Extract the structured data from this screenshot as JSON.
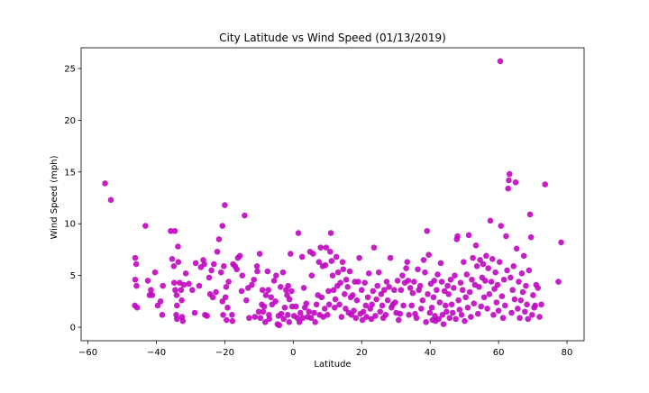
{
  "chart_data": {
    "type": "scatter",
    "title": "City Latitude vs Wind Speed (01/13/2019)",
    "xlabel": "Latitude",
    "ylabel": "Wind Speed (mph)",
    "xlim": [
      -62,
      85
    ],
    "ylim": [
      -1.3,
      27
    ],
    "xticks": [
      -60,
      -40,
      -20,
      0,
      20,
      40,
      60,
      80
    ],
    "yticks": [
      0,
      5,
      10,
      15,
      20,
      25
    ],
    "grid": false,
    "legend": "none",
    "marker_color": "#bf00bf",
    "points": [
      [
        -55.0,
        13.9
      ],
      [
        -53.3,
        12.3
      ],
      [
        -46.2,
        6.7
      ],
      [
        -45.9,
        6.1
      ],
      [
        -46.2,
        4.6
      ],
      [
        -45.8,
        4.0
      ],
      [
        -46.3,
        2.1
      ],
      [
        -45.6,
        1.9
      ],
      [
        -43.2,
        9.8
      ],
      [
        -42.5,
        4.5
      ],
      [
        -42.0,
        3.1
      ],
      [
        -41.6,
        3.6
      ],
      [
        -41.2,
        3.1
      ],
      [
        -40.4,
        5.3
      ],
      [
        -39.6,
        2.1
      ],
      [
        -38.8,
        2.5
      ],
      [
        -38.3,
        1.2
      ],
      [
        -38.1,
        4.0
      ],
      [
        -35.8,
        9.3
      ],
      [
        -34.6,
        9.3
      ],
      [
        -35.4,
        6.6
      ],
      [
        -34.9,
        5.9
      ],
      [
        -34.8,
        4.3
      ],
      [
        -34.5,
        3.6
      ],
      [
        -34.1,
        3.1
      ],
      [
        -34.0,
        2.1
      ],
      [
        -34.2,
        1.2
      ],
      [
        -34.0,
        0.8
      ],
      [
        -33.7,
        7.8
      ],
      [
        -33.6,
        6.3
      ],
      [
        -33.2,
        4.3
      ],
      [
        -32.8,
        3.6
      ],
      [
        -32.6,
        2.6
      ],
      [
        -32.5,
        1.0
      ],
      [
        -32.3,
        0.6
      ],
      [
        -32.0,
        4.1
      ],
      [
        -31.4,
        5.2
      ],
      [
        -30.5,
        4.2
      ],
      [
        -29.5,
        3.6
      ],
      [
        -28.8,
        1.4
      ],
      [
        -28.5,
        6.2
      ],
      [
        -27.5,
        4.0
      ],
      [
        -27.0,
        5.8
      ],
      [
        -26.3,
        6.5
      ],
      [
        -26.0,
        6.1
      ],
      [
        -25.8,
        1.2
      ],
      [
        -25.2,
        1.1
      ],
      [
        -24.6,
        4.8
      ],
      [
        -24.3,
        3.2
      ],
      [
        -23.9,
        5.5
      ],
      [
        -23.5,
        2.9
      ],
      [
        -23.2,
        6.1
      ],
      [
        -22.6,
        3.4
      ],
      [
        -22.2,
        7.3
      ],
      [
        -21.7,
        8.5
      ],
      [
        -21.1,
        5.3
      ],
      [
        -20.7,
        2.5
      ],
      [
        -20.5,
        1.2
      ],
      [
        -20.3,
        5.9
      ],
      [
        -20.7,
        9.8
      ],
      [
        -20.0,
        11.8
      ],
      [
        -19.8,
        2.9
      ],
      [
        -19.6,
        3.9
      ],
      [
        -19.5,
        0.7
      ],
      [
        -19.2,
        1.9
      ],
      [
        -18.9,
        4.4
      ],
      [
        -17.9,
        1.2
      ],
      [
        -17.8,
        0.6
      ],
      [
        -17.6,
        6.1
      ],
      [
        -17.0,
        5.9
      ],
      [
        -16.5,
        5.6
      ],
      [
        -16.2,
        6.7
      ],
      [
        -15.6,
        6.9
      ],
      [
        -15.1,
        3.5
      ],
      [
        -14.9,
        5.0
      ],
      [
        -14.2,
        10.8
      ],
      [
        -13.7,
        2.6
      ],
      [
        -13.2,
        3.8
      ],
      [
        -12.9,
        0.9
      ],
      [
        -12.1,
        4.1
      ],
      [
        -11.5,
        4.6
      ],
      [
        -11.2,
        1.0
      ],
      [
        -10.6,
        5.9
      ],
      [
        -10.5,
        5.4
      ],
      [
        -10.1,
        1.5
      ],
      [
        -9.8,
        7.1
      ],
      [
        -9.6,
        0.9
      ],
      [
        -9.2,
        2.2
      ],
      [
        -9.0,
        3.6
      ],
      [
        -8.8,
        1.5
      ],
      [
        -8.5,
        2.0
      ],
      [
        -8.2,
        0.5
      ],
      [
        -8.0,
        3.1
      ],
      [
        -7.5,
        5.4
      ],
      [
        -7.3,
        3.6
      ],
      [
        -7.1,
        1.2
      ],
      [
        -7.0,
        0.8
      ],
      [
        -6.5,
        2.9
      ],
      [
        -6.2,
        2.2
      ],
      [
        -5.6,
        4.5
      ],
      [
        -5.2,
        2.5
      ],
      [
        -5.0,
        5.0
      ],
      [
        -4.6,
        0.3
      ],
      [
        -4.3,
        1.1
      ],
      [
        -4.1,
        0.2
      ],
      [
        -3.7,
        3.9
      ],
      [
        -3.5,
        1.3
      ],
      [
        -3.0,
        5.3
      ],
      [
        -2.8,
        0.8
      ],
      [
        -2.5,
        1.9
      ],
      [
        -2.1,
        3.6
      ],
      [
        -1.8,
        3.1
      ],
      [
        -1.6,
        1.2
      ],
      [
        -1.5,
        4.0
      ],
      [
        -1.2,
        0.5
      ],
      [
        -1.1,
        2.7
      ],
      [
        -0.8,
        7.1
      ],
      [
        -0.5,
        3.5
      ],
      [
        -0.3,
        2.0
      ],
      [
        0.2,
        1.1
      ],
      [
        0.8,
        2.0
      ],
      [
        1.2,
        0.9
      ],
      [
        1.5,
        9.1
      ],
      [
        1.8,
        0.5
      ],
      [
        2.1,
        1.4
      ],
      [
        2.6,
        6.8
      ],
      [
        2.8,
        0.9
      ],
      [
        3.1,
        3.8
      ],
      [
        3.4,
        1.9
      ],
      [
        3.8,
        2.3
      ],
      [
        4.2,
        1.0
      ],
      [
        4.6,
        1.5
      ],
      [
        4.9,
        7.3
      ],
      [
        5.2,
        0.9
      ],
      [
        5.4,
        5.0
      ],
      [
        5.8,
        7.1
      ],
      [
        6.1,
        1.4
      ],
      [
        6.4,
        0.5
      ],
      [
        6.8,
        2.2
      ],
      [
        7.2,
        3.1
      ],
      [
        7.5,
        6.3
      ],
      [
        7.7,
        1.2
      ],
      [
        8.0,
        7.7
      ],
      [
        8.3,
        2.9
      ],
      [
        8.6,
        5.9
      ],
      [
        8.8,
        1.0
      ],
      [
        9.2,
        1.8
      ],
      [
        9.4,
        6.0
      ],
      [
        9.6,
        7.7
      ],
      [
        10.0,
        1.2
      ],
      [
        10.3,
        3.5
      ],
      [
        10.5,
        2.2
      ],
      [
        10.8,
        7.3
      ],
      [
        11.0,
        9.1
      ],
      [
        11.2,
        6.4
      ],
      [
        11.5,
        5.0
      ],
      [
        11.8,
        3.6
      ],
      [
        12.1,
        1.9
      ],
      [
        12.3,
        2.7
      ],
      [
        12.6,
        6.8
      ],
      [
        12.9,
        4.0
      ],
      [
        13.1,
        5.3
      ],
      [
        13.5,
        2.2
      ],
      [
        13.8,
        4.3
      ],
      [
        14.1,
        1.0
      ],
      [
        14.4,
        6.3
      ],
      [
        14.6,
        5.6
      ],
      [
        15.0,
        3.2
      ],
      [
        15.3,
        1.8
      ],
      [
        15.5,
        4.6
      ],
      [
        15.9,
        3.9
      ],
      [
        16.2,
        1.4
      ],
      [
        16.5,
        5.4
      ],
      [
        16.8,
        2.9
      ],
      [
        17.0,
        1.2
      ],
      [
        17.4,
        3.1
      ],
      [
        17.7,
        1.6
      ],
      [
        18.0,
        4.4
      ],
      [
        18.3,
        0.9
      ],
      [
        18.6,
        2.6
      ],
      [
        19.0,
        4.4
      ],
      [
        19.3,
        6.7
      ],
      [
        19.6,
        1.3
      ],
      [
        20.0,
        3.6
      ],
      [
        20.2,
        0.7
      ],
      [
        20.5,
        1.5
      ],
      [
        20.9,
        4.3
      ],
      [
        21.2,
        2.1
      ],
      [
        21.4,
        1.0
      ],
      [
        21.8,
        2.9
      ],
      [
        22.1,
        5.2
      ],
      [
        22.5,
        1.8
      ],
      [
        22.8,
        0.8
      ],
      [
        23.0,
        2.2
      ],
      [
        23.3,
        3.5
      ],
      [
        23.6,
        7.7
      ],
      [
        24.0,
        1.1
      ],
      [
        24.3,
        2.7
      ],
      [
        24.6,
        4.0
      ],
      [
        25.0,
        5.3
      ],
      [
        25.4,
        1.5
      ],
      [
        25.7,
        3.2
      ],
      [
        26.0,
        2.1
      ],
      [
        26.3,
        0.9
      ],
      [
        26.6,
        3.6
      ],
      [
        27.0,
        1.2
      ],
      [
        27.3,
        4.4
      ],
      [
        27.6,
        2.6
      ],
      [
        28.0,
        3.9
      ],
      [
        28.4,
        6.7
      ],
      [
        28.7,
        1.9
      ],
      [
        29.1,
        2.2
      ],
      [
        29.5,
        3.6
      ],
      [
        29.8,
        2.4
      ],
      [
        30.1,
        1.4
      ],
      [
        30.5,
        4.5
      ],
      [
        30.8,
        0.7
      ],
      [
        31.2,
        1.3
      ],
      [
        31.5,
        3.6
      ],
      [
        31.9,
        5.0
      ],
      [
        32.2,
        2.1
      ],
      [
        32.6,
        4.3
      ],
      [
        33.0,
        5.7
      ],
      [
        33.3,
        6.3
      ],
      [
        33.6,
        4.5
      ],
      [
        33.8,
        1.2
      ],
      [
        34.2,
        3.8
      ],
      [
        34.6,
        2.1
      ],
      [
        34.9,
        3.3
      ],
      [
        35.3,
        4.4
      ],
      [
        35.6,
        1.3
      ],
      [
        36.0,
        0.9
      ],
      [
        36.4,
        5.6
      ],
      [
        36.7,
        3.6
      ],
      [
        37.1,
        4.0
      ],
      [
        37.4,
        1.8
      ],
      [
        37.8,
        2.6
      ],
      [
        38.1,
        6.5
      ],
      [
        38.5,
        5.3
      ],
      [
        38.8,
        0.5
      ],
      [
        39.1,
        9.3
      ],
      [
        39.3,
        3.2
      ],
      [
        39.6,
        7.0
      ],
      [
        39.9,
        1.4
      ],
      [
        40.2,
        4.2
      ],
      [
        40.5,
        1.9
      ],
      [
        40.7,
        0.7
      ],
      [
        41.0,
        2.9
      ],
      [
        41.2,
        4.5
      ],
      [
        41.4,
        1.1
      ],
      [
        41.6,
        0.6
      ],
      [
        41.9,
        3.6
      ],
      [
        42.2,
        5.1
      ],
      [
        42.5,
        0.8
      ],
      [
        42.8,
        2.4
      ],
      [
        43.1,
        6.2
      ],
      [
        43.4,
        4.4
      ],
      [
        43.6,
        1.2
      ],
      [
        43.9,
        0.3
      ],
      [
        44.2,
        3.5
      ],
      [
        44.5,
        2.1
      ],
      [
        44.8,
        1.5
      ],
      [
        45.1,
        4.0
      ],
      [
        45.4,
        3.2
      ],
      [
        45.7,
        0.9
      ],
      [
        46.0,
        4.6
      ],
      [
        46.3,
        2.2
      ],
      [
        46.6,
        1.4
      ],
      [
        46.9,
        3.8
      ],
      [
        47.2,
        5.0
      ],
      [
        47.5,
        0.8
      ],
      [
        47.8,
        8.5
      ],
      [
        48.0,
        8.8
      ],
      [
        48.3,
        2.6
      ],
      [
        48.6,
        1.7
      ],
      [
        48.9,
        4.3
      ],
      [
        49.2,
        1.2
      ],
      [
        49.5,
        3.6
      ],
      [
        49.8,
        6.3
      ],
      [
        50.1,
        0.6
      ],
      [
        50.4,
        2.9
      ],
      [
        50.7,
        5.1
      ],
      [
        51.0,
        1.9
      ],
      [
        51.3,
        8.9
      ],
      [
        51.6,
        3.4
      ],
      [
        51.9,
        1.0
      ],
      [
        52.2,
        4.6
      ],
      [
        52.5,
        6.7
      ],
      [
        52.8,
        2.3
      ],
      [
        53.1,
        4.1
      ],
      [
        53.4,
        7.9
      ],
      [
        53.7,
        5.9
      ],
      [
        54.0,
        1.3
      ],
      [
        54.3,
        3.9
      ],
      [
        54.6,
        6.5
      ],
      [
        54.9,
        2.0
      ],
      [
        55.2,
        4.8
      ],
      [
        55.5,
        6.1
      ],
      [
        55.8,
        2.9
      ],
      [
        56.1,
        4.5
      ],
      [
        56.4,
        6.9
      ],
      [
        56.7,
        1.8
      ],
      [
        57.0,
        5.7
      ],
      [
        57.3,
        3.2
      ],
      [
        57.6,
        10.3
      ],
      [
        57.9,
        4.4
      ],
      [
        58.2,
        6.6
      ],
      [
        58.5,
        1.2
      ],
      [
        58.8,
        3.7
      ],
      [
        59.1,
        5.3
      ],
      [
        59.4,
        2.4
      ],
      [
        59.7,
        4.1
      ],
      [
        60.0,
        1.6
      ],
      [
        60.3,
        6.3
      ],
      [
        60.5,
        25.7
      ],
      [
        60.7,
        9.8
      ],
      [
        61.0,
        3.0
      ],
      [
        61.3,
        0.9
      ],
      [
        61.6,
        4.6
      ],
      [
        61.9,
        2.1
      ],
      [
        62.2,
        8.8
      ],
      [
        62.5,
        5.5
      ],
      [
        62.8,
        13.4
      ],
      [
        63.0,
        14.2
      ],
      [
        63.2,
        14.8
      ],
      [
        63.5,
        4.8
      ],
      [
        63.8,
        1.4
      ],
      [
        64.1,
        3.6
      ],
      [
        64.4,
        5.9
      ],
      [
        64.7,
        2.7
      ],
      [
        65.0,
        14.0
      ],
      [
        65.3,
        7.6
      ],
      [
        65.6,
        1.8
      ],
      [
        65.9,
        4.4
      ],
      [
        66.2,
        0.9
      ],
      [
        66.5,
        2.6
      ],
      [
        66.8,
        5.2
      ],
      [
        67.1,
        3.4
      ],
      [
        67.4,
        6.9
      ],
      [
        67.7,
        1.5
      ],
      [
        68.0,
        4.0
      ],
      [
        68.3,
        2.2
      ],
      [
        68.6,
        0.8
      ],
      [
        68.9,
        5.5
      ],
      [
        69.2,
        10.9
      ],
      [
        69.5,
        8.7
      ],
      [
        69.8,
        1.2
      ],
      [
        70.1,
        3.1
      ],
      [
        70.4,
        1.9
      ],
      [
        70.7,
        2.1
      ],
      [
        71.0,
        4.1
      ],
      [
        71.5,
        3.8
      ],
      [
        72.0,
        1.0
      ],
      [
        72.5,
        2.2
      ],
      [
        73.6,
        13.8
      ],
      [
        77.5,
        4.4
      ],
      [
        78.3,
        8.2
      ]
    ]
  }
}
